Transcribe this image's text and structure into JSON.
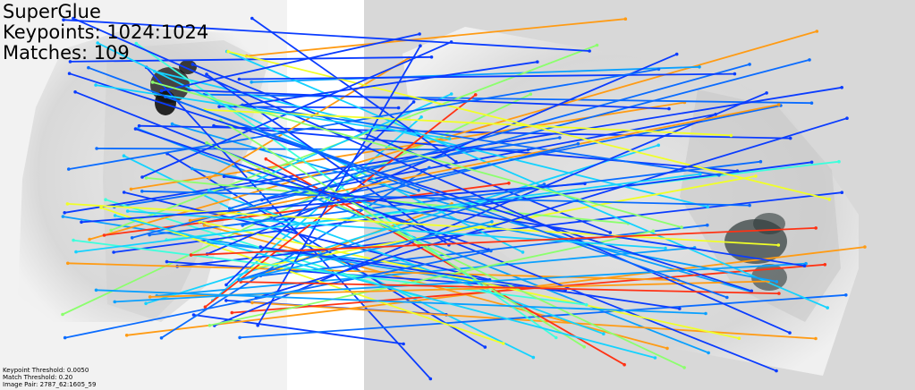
{
  "header": {
    "method": "SuperGlue",
    "keypoints": "Keypoints: 1024:1024",
    "matches": "Matches: 109"
  },
  "footer": {
    "keypoint_threshold": "Keypoint Threshold: 0.0050",
    "match_threshold": "Match Threshold: 0.20",
    "image_pair": "Image Pair: 2787_62:1605_59"
  },
  "colors": {
    "background": "#ffffff",
    "image_gray": "#dcdcdc",
    "speckle_dark": "#2f3a3a",
    "match_colormap": [
      "#0a3cff",
      "#0a6cff",
      "#0aa0ff",
      "#14d2ff",
      "#3cffdc",
      "#8cff6e",
      "#f0ff28",
      "#ff9b14",
      "#ff3214"
    ]
  }
}
